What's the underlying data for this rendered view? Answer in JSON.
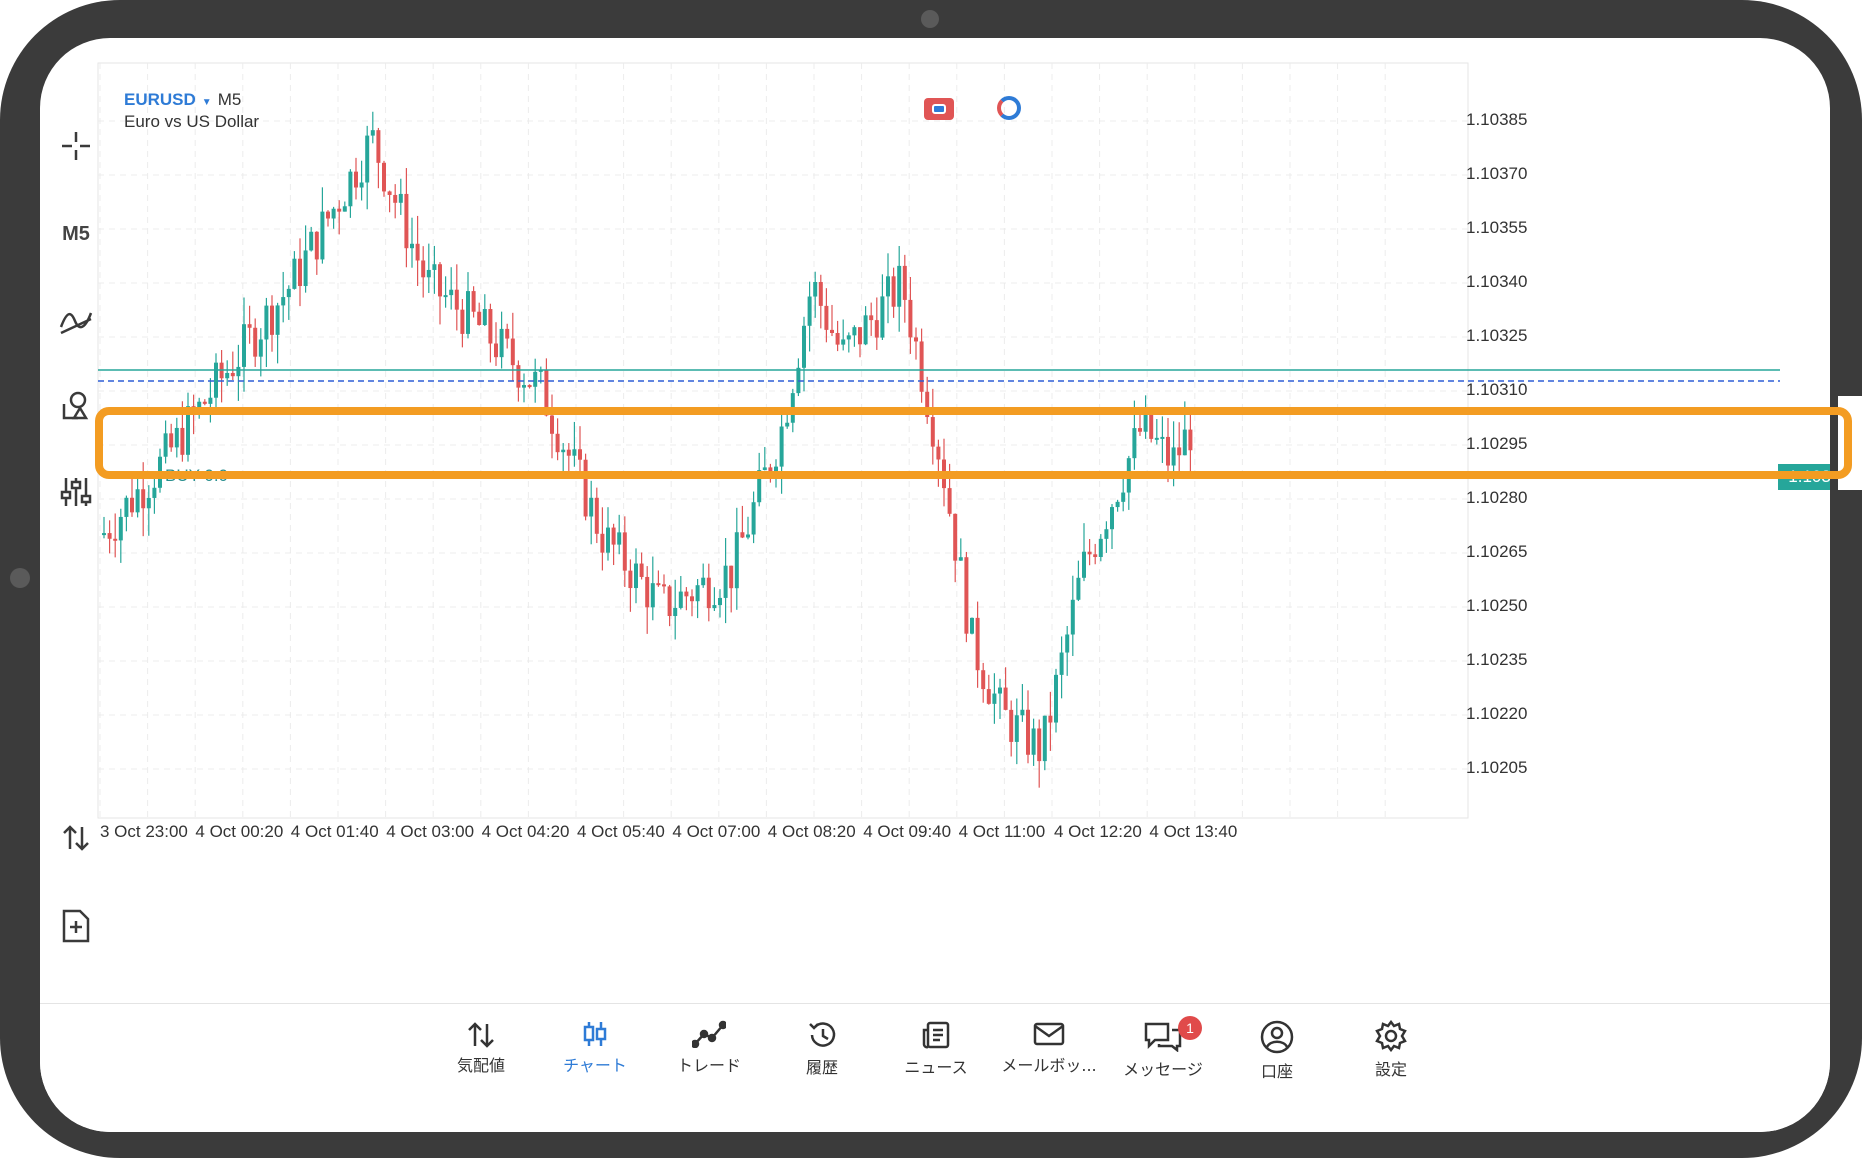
{
  "symbol": {
    "pair": "EURUSD",
    "timeframe": "M5",
    "description": "Euro vs US Dollar"
  },
  "toolbar": {
    "timeframe_label": "M5"
  },
  "price_axis": [
    "1.10385",
    "1.10370",
    "1.10355",
    "1.10340",
    "1.10325",
    "1.10310",
    "1.10295",
    "1.10280",
    "1.10265",
    "1.10250",
    "1.10235",
    "1.10220",
    "1.10205"
  ],
  "time_axis": [
    "3 Oct 23:00",
    "4 Oct 00:20",
    "4 Oct 01:40",
    "4 Oct 03:00",
    "4 Oct 04:20",
    "4 Oct 05:40",
    "4 Oct 07:00",
    "4 Oct 08:20",
    "4 Oct 09:40",
    "4 Oct 11:00",
    "4 Oct 12:20",
    "4 Oct 13:40"
  ],
  "position": {
    "label": "BUY 0.0",
    "price": "1.10315"
  },
  "bottom_nav": {
    "quotes": "気配値",
    "chart": "チャート",
    "trade": "トレード",
    "history": "履歴",
    "news": "ニュース",
    "mailbox": "メールボッ...",
    "messages": "メッセージ",
    "messages_badge": "1",
    "account": "口座",
    "settings": "設定"
  },
  "colors": {
    "bull": "#26a69a",
    "bear": "#e05555",
    "accent": "#2e7bd6",
    "highlight": "#f39c22"
  },
  "chart_data": {
    "type": "candlestick",
    "x": [
      "3 Oct 23:00",
      "4 Oct 00:20",
      "4 Oct 01:40",
      "4 Oct 03:00",
      "4 Oct 04:20",
      "4 Oct 05:40",
      "4 Oct 07:00",
      "4 Oct 08:20",
      "4 Oct 09:40",
      "4 Oct 11:00",
      "4 Oct 12:20",
      "4 Oct 13:40"
    ],
    "close_approx": [
      1.1028,
      1.1031,
      1.1035,
      1.1037,
      1.1031,
      1.1027,
      1.1026,
      1.1034,
      1.1033,
      1.1022,
      1.1028,
      1.103
    ],
    "ylim": [
      1.102,
      1.1039
    ]
  }
}
